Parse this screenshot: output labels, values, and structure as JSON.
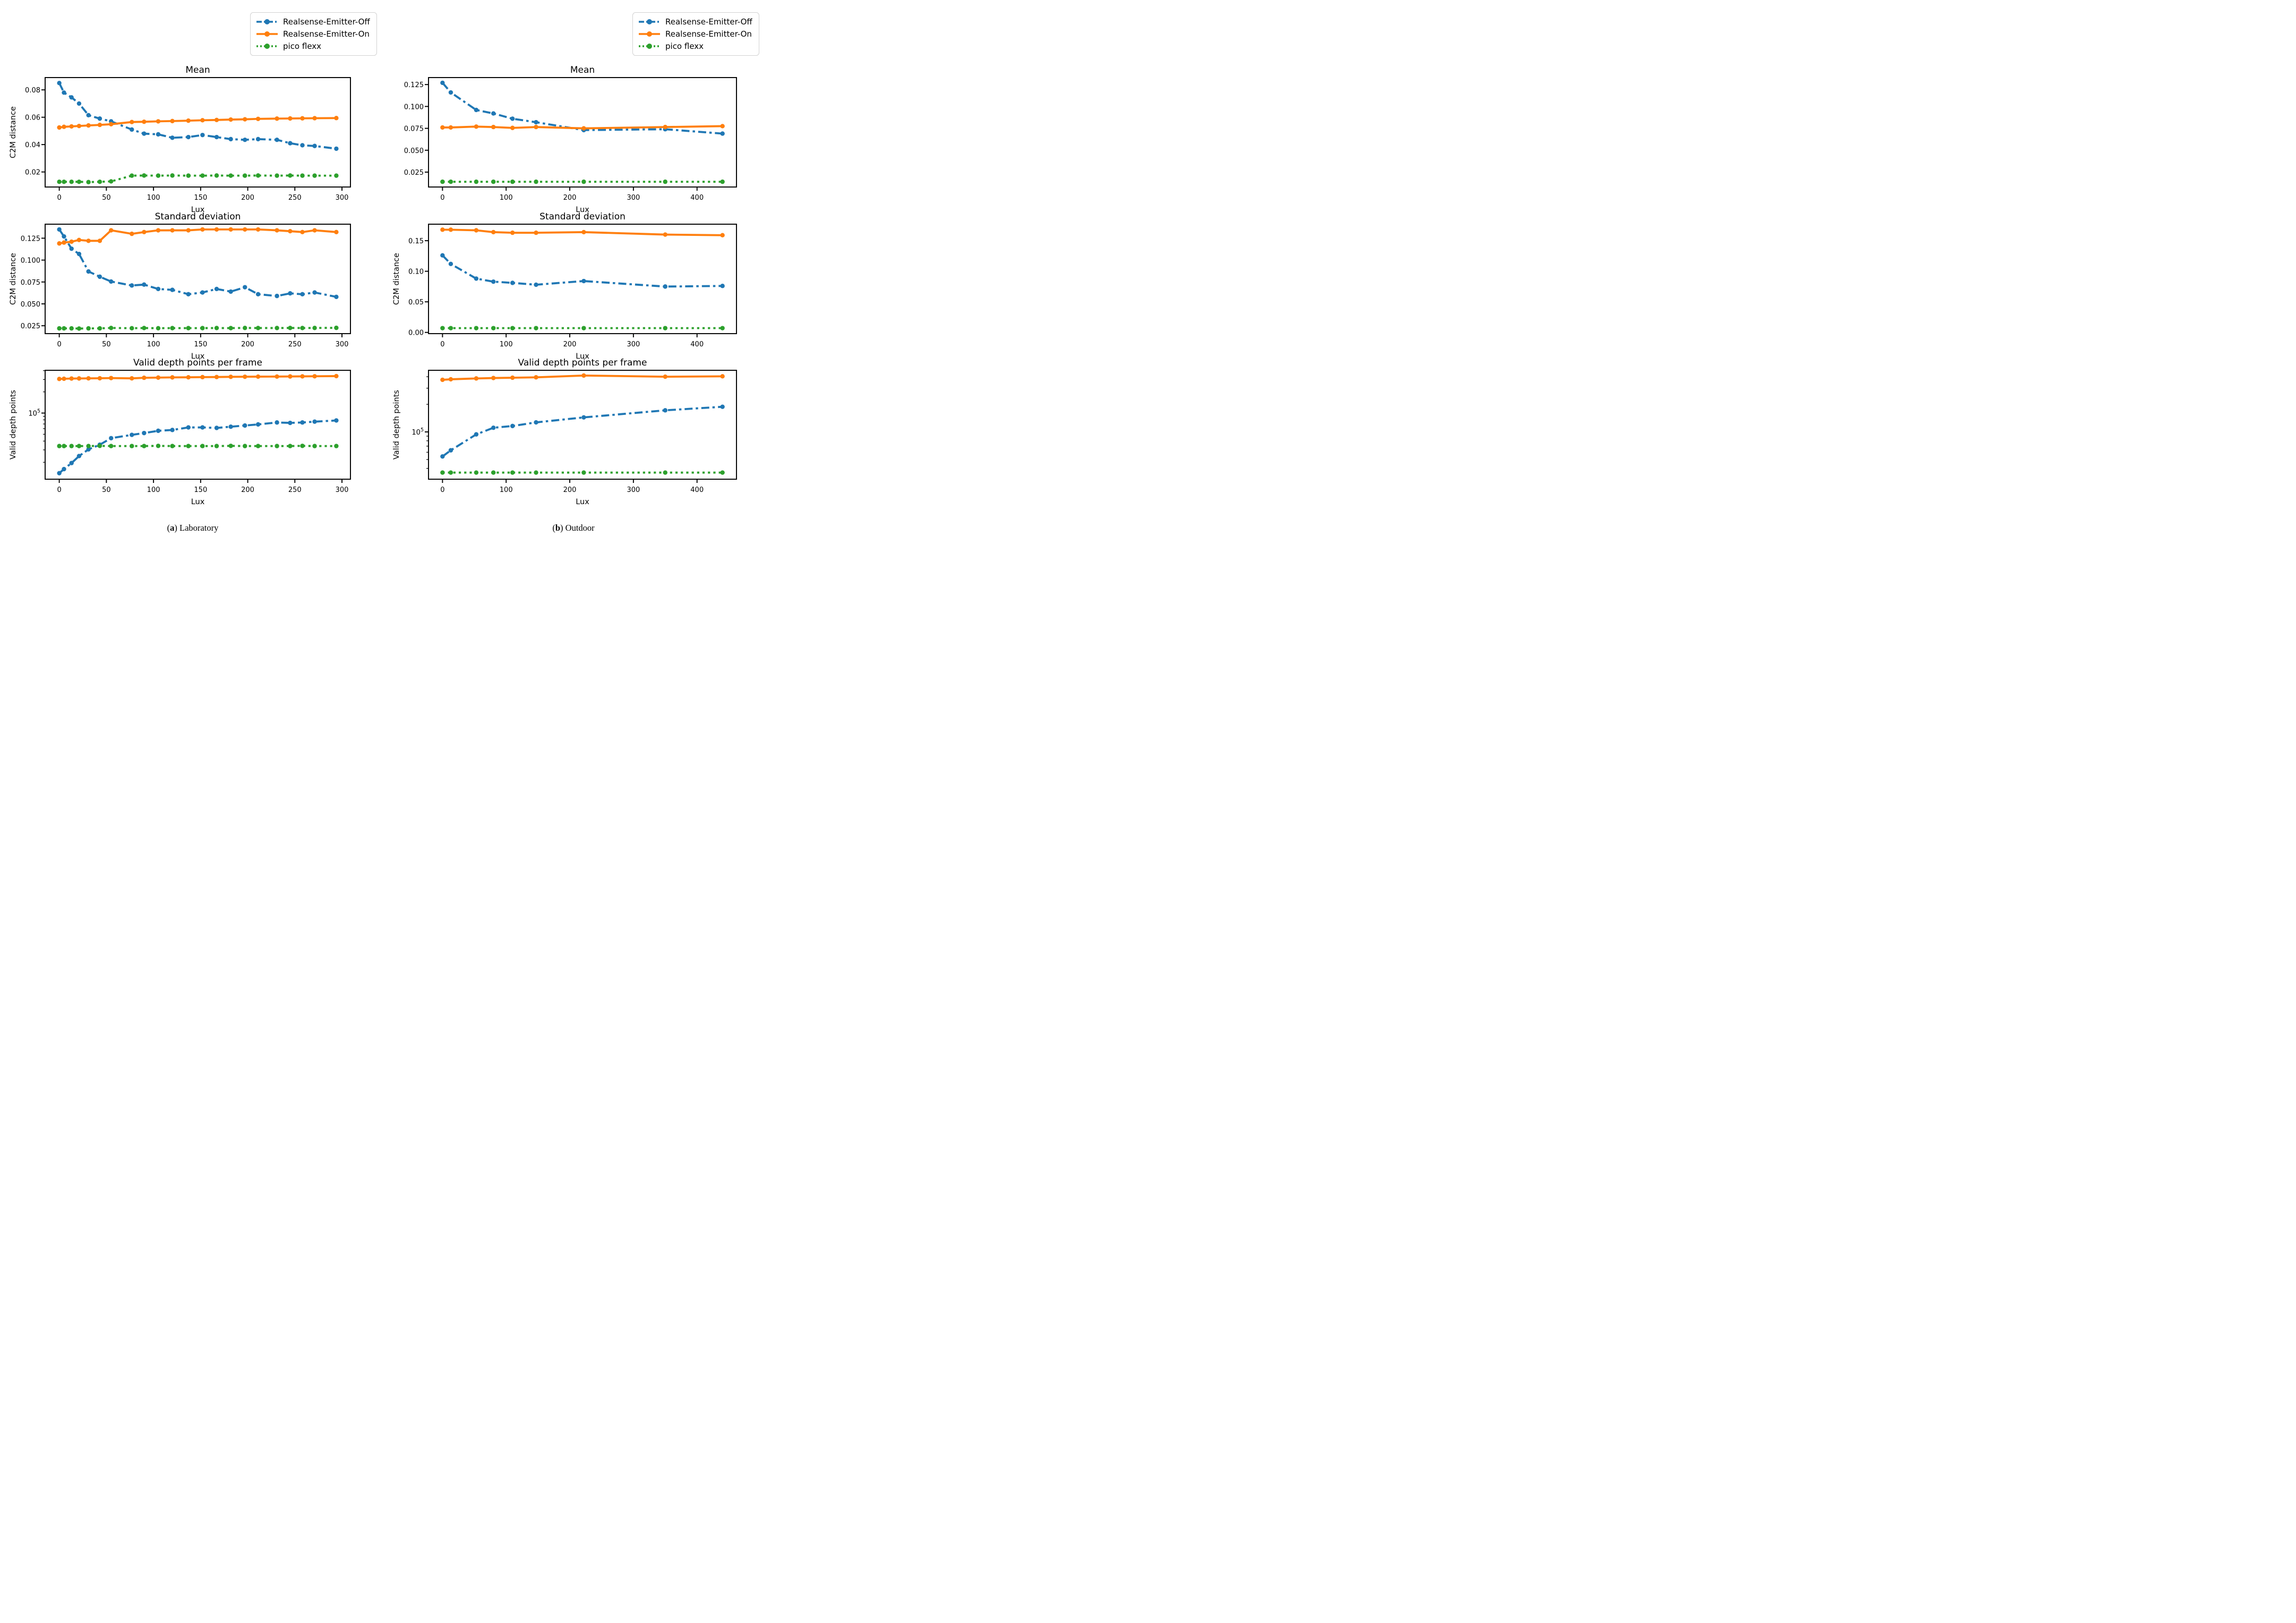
{
  "figure": {
    "background": "#ffffff"
  },
  "colors": {
    "emitter_off": "#1f77b4",
    "emitter_on": "#ff7f0e",
    "pico_flexx": "#2ca02c",
    "axis": "#000000",
    "legend_border": "#d2d2d2"
  },
  "legend": {
    "items": [
      {
        "label": "Realsense-Emitter-Off",
        "color": "#1f77b4",
        "linestyle": "dashdot"
      },
      {
        "label": "Realsense-Emitter-On",
        "color": "#ff7f0e",
        "linestyle": "solid"
      },
      {
        "label": "pico flexx",
        "color": "#2ca02c",
        "linestyle": "dotted"
      }
    ]
  },
  "captions": {
    "a": {
      "open": "(",
      "letter": "a",
      "close": ")",
      "text": " Laboratory"
    },
    "b": {
      "open": "(",
      "letter": "b",
      "close": ")",
      "text": " Outdoor"
    }
  },
  "chart_data": [
    {
      "id": "lab-mean",
      "panel": "a",
      "row": 0,
      "type": "line",
      "title": "Mean",
      "xlabel": "Lux",
      "ylabel": "C2M distance",
      "yscale": "linear",
      "grid": false,
      "xlim": [
        -15,
        309
      ],
      "ylim": [
        0.009,
        0.089
      ],
      "xticks": [
        0,
        50,
        100,
        150,
        200,
        250,
        300
      ],
      "xtick_labels": [
        "0",
        "50",
        "100",
        "150",
        "200",
        "250",
        "300"
      ],
      "yticks": [
        0.02,
        0.04,
        0.06,
        0.08
      ],
      "ytick_labels": [
        "0.02",
        "0.04",
        "0.06",
        "0.08"
      ],
      "x": [
        0,
        5,
        13,
        21,
        31,
        43,
        55,
        77,
        90,
        105,
        120,
        137,
        152,
        167,
        182,
        197,
        211,
        231,
        245,
        258,
        271,
        294
      ],
      "series": [
        {
          "name": "Realsense-Emitter-Off",
          "color": "#1f77b4",
          "linestyle": "dashdot",
          "values": [
            0.085,
            0.078,
            0.0745,
            0.07,
            0.0615,
            0.059,
            0.057,
            0.051,
            0.048,
            0.0475,
            0.045,
            0.0455,
            0.047,
            0.0455,
            0.044,
            0.0435,
            0.044,
            0.0435,
            0.041,
            0.0395,
            0.039,
            0.037
          ]
        },
        {
          "name": "Realsense-Emitter-On",
          "color": "#ff7f0e",
          "linestyle": "solid",
          "values": [
            0.0525,
            0.053,
            0.0533,
            0.0536,
            0.054,
            0.0544,
            0.0549,
            0.0565,
            0.0567,
            0.057,
            0.0572,
            0.0575,
            0.0578,
            0.058,
            0.0583,
            0.0585,
            0.0588,
            0.059,
            0.0591,
            0.0592,
            0.0593,
            0.0594
          ]
        },
        {
          "name": "pico flexx",
          "color": "#2ca02c",
          "linestyle": "dotted",
          "values": [
            0.0128,
            0.0128,
            0.0128,
            0.0128,
            0.0126,
            0.0128,
            0.0131,
            0.0173,
            0.0174,
            0.0173,
            0.0174,
            0.0173,
            0.0173,
            0.0174,
            0.0173,
            0.0173,
            0.0174,
            0.0173,
            0.0174,
            0.0173,
            0.0173,
            0.0173
          ]
        }
      ]
    },
    {
      "id": "out-mean",
      "panel": "b",
      "row": 0,
      "type": "line",
      "title": "Mean",
      "xlabel": "Lux",
      "ylabel": "",
      "yscale": "linear",
      "grid": false,
      "xlim": [
        -22,
        462
      ],
      "ylim": [
        0.008,
        0.133
      ],
      "xticks": [
        0,
        100,
        200,
        300,
        400
      ],
      "xtick_labels": [
        "0",
        "100",
        "200",
        "300",
        "400"
      ],
      "yticks": [
        0.025,
        0.05,
        0.075,
        0.1,
        0.125
      ],
      "ytick_labels": [
        "0.025",
        "0.050",
        "0.075",
        "0.100",
        "0.125"
      ],
      "x": [
        0,
        13,
        53,
        80,
        110,
        147,
        222,
        350,
        440
      ],
      "series": [
        {
          "name": "Realsense-Emitter-Off",
          "color": "#1f77b4",
          "linestyle": "dashdot",
          "values": [
            0.127,
            0.116,
            0.096,
            0.092,
            0.086,
            0.082,
            0.073,
            0.074,
            0.069
          ]
        },
        {
          "name": "Realsense-Emitter-On",
          "color": "#ff7f0e",
          "linestyle": "solid",
          "values": [
            0.076,
            0.076,
            0.077,
            0.0765,
            0.0755,
            0.0765,
            0.075,
            0.0765,
            0.0775
          ]
        },
        {
          "name": "pico flexx",
          "color": "#2ca02c",
          "linestyle": "dotted",
          "values": [
            0.014,
            0.014,
            0.014,
            0.014,
            0.014,
            0.014,
            0.014,
            0.014,
            0.014
          ]
        }
      ]
    },
    {
      "id": "lab-std",
      "panel": "a",
      "row": 1,
      "type": "line",
      "title": "Standard deviation",
      "xlabel": "Lux",
      "ylabel": "C2M distance",
      "yscale": "linear",
      "grid": false,
      "xlim": [
        -15,
        309
      ],
      "ylim": [
        0.016,
        0.141
      ],
      "xticks": [
        0,
        50,
        100,
        150,
        200,
        250,
        300
      ],
      "xtick_labels": [
        "0",
        "50",
        "100",
        "150",
        "200",
        "250",
        "300"
      ],
      "yticks": [
        0.025,
        0.05,
        0.075,
        0.1,
        0.125
      ],
      "ytick_labels": [
        "0.025",
        "0.050",
        "0.075",
        "0.100",
        "0.125"
      ],
      "x": [
        0,
        5,
        13,
        21,
        31,
        43,
        55,
        77,
        90,
        105,
        120,
        137,
        152,
        167,
        182,
        197,
        211,
        231,
        245,
        258,
        271,
        294
      ],
      "series": [
        {
          "name": "Realsense-Emitter-Off",
          "color": "#1f77b4",
          "linestyle": "dashdot",
          "values": [
            0.135,
            0.127,
            0.113,
            0.107,
            0.087,
            0.081,
            0.0755,
            0.071,
            0.072,
            0.067,
            0.066,
            0.061,
            0.063,
            0.067,
            0.064,
            0.069,
            0.061,
            0.059,
            0.062,
            0.061,
            0.063,
            0.058
          ]
        },
        {
          "name": "Realsense-Emitter-On",
          "color": "#ff7f0e",
          "linestyle": "solid",
          "values": [
            0.119,
            0.12,
            0.121,
            0.123,
            0.122,
            0.122,
            0.134,
            0.13,
            0.132,
            0.134,
            0.134,
            0.134,
            0.135,
            0.135,
            0.135,
            0.135,
            0.135,
            0.134,
            0.133,
            0.132,
            0.134,
            0.132
          ]
        },
        {
          "name": "pico flexx",
          "color": "#2ca02c",
          "linestyle": "dotted",
          "values": [
            0.022,
            0.022,
            0.022,
            0.0218,
            0.022,
            0.022,
            0.0225,
            0.0222,
            0.0224,
            0.0222,
            0.0223,
            0.0223,
            0.0223,
            0.0224,
            0.0223,
            0.0225,
            0.0224,
            0.0224,
            0.0225,
            0.0224,
            0.0225,
            0.0226
          ]
        }
      ]
    },
    {
      "id": "out-std",
      "panel": "b",
      "row": 1,
      "type": "line",
      "title": "Standard deviation",
      "xlabel": "Lux",
      "ylabel": "C2M distance",
      "yscale": "linear",
      "grid": false,
      "xlim": [
        -22,
        462
      ],
      "ylim": [
        -0.002,
        0.177
      ],
      "xticks": [
        0,
        100,
        200,
        300,
        400
      ],
      "xtick_labels": [
        "0",
        "100",
        "200",
        "300",
        "400"
      ],
      "yticks": [
        0.0,
        0.05,
        0.1,
        0.15
      ],
      "ytick_labels": [
        "0.00",
        "0.05",
        "0.10",
        "0.15"
      ],
      "x": [
        0,
        13,
        53,
        80,
        110,
        147,
        222,
        350,
        440
      ],
      "series": [
        {
          "name": "Realsense-Emitter-Off",
          "color": "#1f77b4",
          "linestyle": "dashdot",
          "values": [
            0.126,
            0.112,
            0.088,
            0.083,
            0.081,
            0.078,
            0.084,
            0.075,
            0.076
          ]
        },
        {
          "name": "Realsense-Emitter-On",
          "color": "#ff7f0e",
          "linestyle": "solid",
          "values": [
            0.168,
            0.168,
            0.167,
            0.164,
            0.163,
            0.163,
            0.164,
            0.16,
            0.159
          ]
        },
        {
          "name": "pico flexx",
          "color": "#2ca02c",
          "linestyle": "dotted",
          "values": [
            0.007,
            0.007,
            0.007,
            0.007,
            0.007,
            0.007,
            0.007,
            0.007,
            0.007
          ]
        }
      ]
    },
    {
      "id": "lab-valid",
      "panel": "a",
      "row": 2,
      "type": "line",
      "title": "Valid depth points per frame",
      "xlabel": "Lux",
      "ylabel": "Valid depth points",
      "yscale": "log",
      "grid": false,
      "xlim": [
        -15,
        309
      ],
      "ylim": [
        11500,
        405000
      ],
      "xticks": [
        0,
        50,
        100,
        150,
        200,
        250,
        300
      ],
      "xtick_labels": [
        "0",
        "50",
        "100",
        "150",
        "200",
        "250",
        "300"
      ],
      "yticks": [
        100000
      ],
      "ytick_labels": [
        "1e5"
      ],
      "x": [
        0,
        5,
        13,
        21,
        31,
        43,
        55,
        77,
        90,
        105,
        120,
        137,
        152,
        167,
        182,
        197,
        211,
        231,
        245,
        258,
        271,
        294
      ],
      "series": [
        {
          "name": "Realsense-Emitter-Off",
          "color": "#1f77b4",
          "linestyle": "dashdot",
          "values": [
            14000,
            16000,
            19500,
            24500,
            30500,
            35500,
            44000,
            49000,
            52000,
            56000,
            57500,
            62500,
            62500,
            61500,
            64000,
            66500,
            69000,
            73500,
            72500,
            73500,
            75500,
            78500
          ]
        },
        {
          "name": "Realsense-Emitter-On",
          "color": "#ff7f0e",
          "linestyle": "solid",
          "values": [
            305000,
            307000,
            309000,
            310000,
            311000,
            312000,
            314000,
            311000,
            317000,
            319000,
            321000,
            322000,
            324000,
            325000,
            327000,
            328000,
            329000,
            330000,
            331000,
            332000,
            333000,
            335000
          ]
        },
        {
          "name": "pico flexx",
          "color": "#2ca02c",
          "linestyle": "dotted",
          "values": [
            34000,
            34000,
            34000,
            34000,
            34000,
            34200,
            34000,
            34000,
            34000,
            34200,
            34000,
            34000,
            34000,
            34000,
            34200,
            34000,
            34000,
            34000,
            34000,
            34200,
            34000,
            34000
          ]
        }
      ]
    },
    {
      "id": "out-valid",
      "panel": "b",
      "row": 2,
      "type": "line",
      "title": "Valid depth points per frame",
      "xlabel": "Lux",
      "ylabel": "Valid depth points",
      "yscale": "log",
      "grid": false,
      "xlim": [
        -22,
        462
      ],
      "ylim": [
        30500,
        470000
      ],
      "xticks": [
        0,
        100,
        200,
        300,
        400
      ],
      "xtick_labels": [
        "0",
        "100",
        "200",
        "300",
        "400"
      ],
      "yticks": [
        100000
      ],
      "ytick_labels": [
        "1e5"
      ],
      "x": [
        0,
        13,
        53,
        80,
        110,
        147,
        222,
        350,
        440
      ],
      "series": [
        {
          "name": "Realsense-Emitter-Off",
          "color": "#1f77b4",
          "linestyle": "dashdot",
          "values": [
            54000,
            63000,
            94000,
            111000,
            116000,
            127000,
            144000,
            172000,
            188000
          ]
        },
        {
          "name": "Realsense-Emitter-On",
          "color": "#ff7f0e",
          "linestyle": "solid",
          "values": [
            370000,
            375000,
            383000,
            387000,
            390000,
            394000,
            412000,
            400000,
            404000
          ]
        },
        {
          "name": "pico flexx",
          "color": "#2ca02c",
          "linestyle": "dotted",
          "values": [
            36000,
            36000,
            36000,
            36000,
            36000,
            36000,
            36000,
            36000,
            36000
          ]
        }
      ]
    }
  ]
}
